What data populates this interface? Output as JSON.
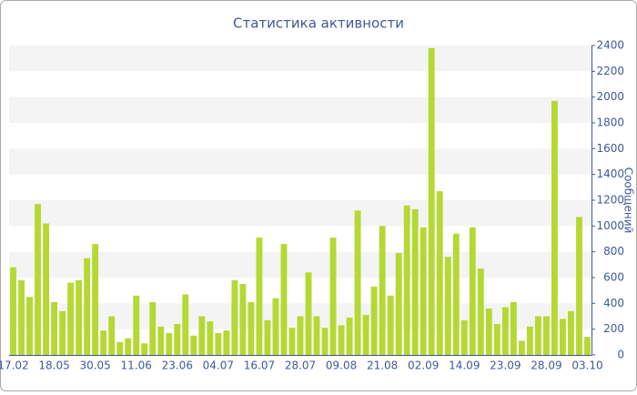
{
  "chart_data": {
    "type": "bar",
    "title": "Статистика активности",
    "y_axis_label": "Сообщений",
    "categories": [
      "17.02",
      null,
      null,
      null,
      null,
      "18.05",
      null,
      null,
      null,
      null,
      "30.05",
      null,
      null,
      null,
      null,
      "11.06",
      null,
      null,
      null,
      null,
      "23.06",
      null,
      null,
      null,
      null,
      "04.07",
      null,
      null,
      null,
      null,
      "16.07",
      null,
      null,
      null,
      null,
      "28.07",
      null,
      null,
      null,
      null,
      "09.08",
      null,
      null,
      null,
      null,
      "21.08",
      null,
      null,
      null,
      null,
      "02.09",
      null,
      null,
      null,
      null,
      "14.09",
      null,
      null,
      null,
      null,
      "23.09",
      null,
      null,
      null,
      null,
      "28.09",
      null,
      null,
      null,
      null,
      "03.10"
    ],
    "values": [
      680,
      580,
      450,
      1170,
      1020,
      410,
      340,
      560,
      580,
      750,
      860,
      190,
      300,
      100,
      130,
      460,
      90,
      410,
      220,
      170,
      240,
      470,
      150,
      300,
      260,
      170,
      190,
      580,
      550,
      410,
      910,
      270,
      440,
      860,
      210,
      300,
      640,
      300,
      210,
      910,
      230,
      290,
      1120,
      310,
      530,
      1000,
      460,
      790,
      1160,
      1130,
      990,
      2380,
      1270,
      760,
      940,
      270,
      990,
      670,
      360,
      240,
      370,
      410,
      110,
      220,
      300,
      300,
      1970,
      280,
      340,
      1070,
      140
    ],
    "color": "#b5d833",
    "ylim": [
      0,
      2400
    ],
    "yticks": [
      0,
      200,
      400,
      600,
      800,
      1000,
      1200,
      1400,
      1600,
      1800,
      2000,
      2200,
      2400
    ],
    "grid": true
  }
}
